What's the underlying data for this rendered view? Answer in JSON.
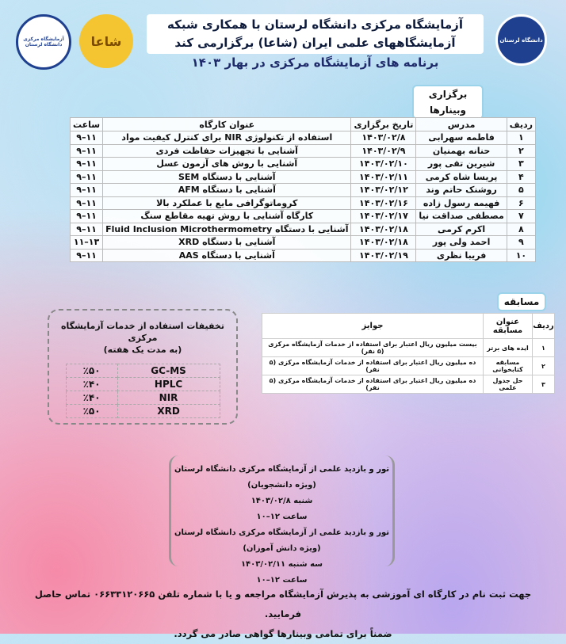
{
  "header": {
    "title_line1": "آزمایشگاه مرکزی دانشگاه لرستان با همکاری شبکه",
    "title_line2": "آزمایشگاههای علمی ایران (شاعا) برگزارمی کند",
    "subtitle": "برنامه های آزمایشگاه مرکزی در بهار ۱۴۰۳",
    "logo_right_text": "دانشگاه لرستان",
    "logo_left_text": "آزمایشگاه مرکزی دانشگاه لرستان",
    "logo_mid_text": "شاعا"
  },
  "webinars": {
    "label": "برگزاری وبینارها",
    "headers": [
      "ردیف",
      "مدرس",
      "تاریخ برگزاری",
      "عنوان کارگاه",
      "ساعت"
    ],
    "rows": [
      [
        "۱",
        "فاطمه سهرابی",
        "۱۴۰۳/۰۲/۸",
        "استفاده از تکنولوژی NIR برای کنترل کیفیت مواد",
        "۱۱–۹"
      ],
      [
        "۲",
        "حنانه بهمنیان",
        "۱۴۰۳/۰۲/۹",
        "آشنایی با تجهیزات حفاظت فردی",
        "۱۱–۹"
      ],
      [
        "۳",
        "شیرین تقی پور",
        "۱۴۰۳/۰۲/۱۰",
        "آشنایی با روش های آزمون عسل",
        "۱۱–۹"
      ],
      [
        "۴",
        "پریسا شاه کرمی",
        "۱۴۰۳/۰۲/۱۱",
        "آشنایی با دستگاه SEM",
        "۱۱–۹"
      ],
      [
        "۵",
        "روشنک حاتم وند",
        "۱۴۰۳/۰۲/۱۲",
        "آشنایی با دستگاه AFM",
        "۱۱–۹"
      ],
      [
        "۶",
        "فهیمه رسول زاده",
        "۱۴۰۳/۰۲/۱۶",
        "کروماتوگرافی مایع با عملکرد بالا",
        "۱۱–۹"
      ],
      [
        "۷",
        "مصطفی صداقت نیا",
        "۱۴۰۳/۰۲/۱۷",
        "کارگاه آشنایی با روش تهیه مقاطع سنگ",
        "۱۱–۹"
      ],
      [
        "۸",
        "اکرم کرمی",
        "۱۴۰۳/۰۲/۱۸",
        "آشنایی با دستگاه Fluid Inclusion Microthermometry",
        "۱۱–۹"
      ],
      [
        "۹",
        "احمد ولی پور",
        "۱۴۰۳/۰۲/۱۸",
        "آشنایی با دستگاه XRD",
        "۱۳–۱۱"
      ],
      [
        "۱۰",
        "فریبا نظری",
        "۱۴۰۳/۰۲/۱۹",
        "آشنایی با دستگاه AAS",
        "۱۱–۹"
      ]
    ]
  },
  "competition": {
    "label": "مسابقه",
    "headers": [
      "ردیف",
      "عنوان مسابقه",
      "جوایز"
    ],
    "rows": [
      [
        "۱",
        "ایده های برتر",
        "بیست میلیون ریال اعتبار برای استفاده از خدمات آزمایشگاه مرکزی (۵ نفر)"
      ],
      [
        "۲",
        "مسابقه کتابخوانی",
        "ده میلیون ریال اعتبار برای استفاده از خدمات آزمایشگاه مرکزی (۵ نفر)"
      ],
      [
        "۳",
        "حل جدول علمی",
        "ده میلیون ریال اعتبار برای استفاده از خدمات آزمایشگاه مرکزی (۵ نفر)"
      ]
    ]
  },
  "discounts": {
    "title": "تخفیفات استفاده از خدمات آزمایشگاه مرکزی",
    "subtitle": "(به مدت یک هفته)",
    "rows": [
      [
        "GC-MS",
        "٪۵۰"
      ],
      [
        "HPLC",
        "٪۴۰"
      ],
      [
        "NIR",
        "٪۴۰"
      ],
      [
        "XRD",
        "٪۵۰"
      ]
    ]
  },
  "tour": {
    "lines": [
      "تور و بازدید علمی از آزمایشگاه مرکزی دانشگاه لرستان (ویژه دانشجویان)",
      "شنبه ۱۴۰۳/۰۲/۸",
      "ساعت ۱۲–۱۰",
      "تور و بازدید علمی از آزمایشگاه مرکزی دانشگاه لرستان (ویژه دانش آموزان)",
      "سه شنبه ۱۴۰۳/۰۲/۱۱",
      "ساعت ۱۲–۱۰"
    ]
  },
  "footer": {
    "line1": "جهت ثبت نام در کارگاه ای آموزشی به پذیرش آزمایشگاه مراجعه و یا با شماره تلفن ۰۶۶۳۳۱۲۰۶۶۵ تماس حاصل فرمایید.",
    "line2": "ضمناً برای تمامی وبینارها گواهی صادر می گردد."
  },
  "colors": {
    "title_text": "#0d1a3a",
    "tag_border": "#9bd3ea",
    "logo_blue": "#1f3f8f",
    "logo_yellow": "#f4c531"
  }
}
